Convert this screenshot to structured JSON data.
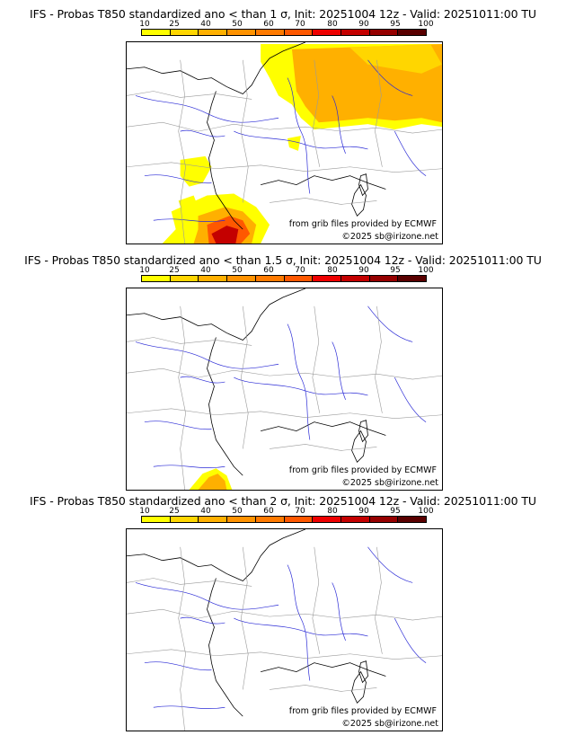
{
  "colorbar": {
    "ticks": [
      "10",
      "25",
      "40",
      "50",
      "60",
      "70",
      "80",
      "90",
      "95",
      "100"
    ],
    "colors": [
      "#ffff00",
      "#ffd600",
      "#ffb000",
      "#ff9200",
      "#ff7a00",
      "#ff5800",
      "#ee0000",
      "#c40000",
      "#960000",
      "#5a0000"
    ]
  },
  "panels": [
    {
      "title": "IFS - Probas T850  standardized ano < than 1 σ, Init: 20251004 12z - Valid: 20251011:00 TU",
      "source": "from grib files provided by ECMWF",
      "copyright": "©2025 sb@irizone.net",
      "shading": "heavy"
    },
    {
      "title": "IFS - Probas T850  standardized ano < than 1.5 σ, Init: 20251004 12z - Valid: 20251011:00 TU",
      "source": "from grib files provided by ECMWF",
      "copyright": "©2025 sb@irizone.net",
      "shading": "light"
    },
    {
      "title": "IFS - Probas T850  standardized ano < than 2 σ, Init: 20251004 12z - Valid: 20251011:00 TU",
      "source": "from grib files provided by ECMWF",
      "copyright": "©2025 sb@irizone.net",
      "shading": "none"
    }
  ],
  "map_colors": {
    "coast": "#000000",
    "rivers": "#2b2bd6",
    "borders": "#9a9a9a"
  }
}
